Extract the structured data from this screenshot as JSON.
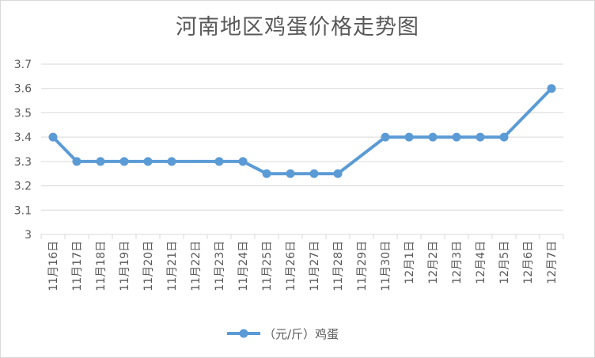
{
  "chart_data": {
    "type": "line",
    "title": "河南地区鸡蛋价格走势图",
    "categories": [
      "11月16日",
      "11月17日",
      "11月18日",
      "11月19日",
      "11月20日",
      "11月21日",
      "11月22日",
      "11月23日",
      "11月24日",
      "11月25日",
      "11月26日",
      "11月27日",
      "11月28日",
      "11月29日",
      "11月30日",
      "12月1日",
      "12月2日",
      "12月3日",
      "12月4日",
      "12月5日",
      "12月6日",
      "12月7日"
    ],
    "series": [
      {
        "name": "（元/斤）鸡蛋",
        "color": "#5b9bd5",
        "values": [
          3.4,
          3.3,
          3.3,
          3.3,
          3.3,
          3.3,
          null,
          3.3,
          3.3,
          3.25,
          3.25,
          3.25,
          3.25,
          null,
          3.4,
          3.4,
          3.4,
          3.4,
          3.4,
          3.4,
          null,
          3.6
        ]
      }
    ],
    "ylim": [
      3,
      3.7
    ],
    "yticks": [
      "3",
      "3.1",
      "3.2",
      "3.3",
      "3.4",
      "3.5",
      "3.6",
      "3.7"
    ],
    "grid": true,
    "legend": "bottom",
    "xlabel": "",
    "ylabel": ""
  }
}
